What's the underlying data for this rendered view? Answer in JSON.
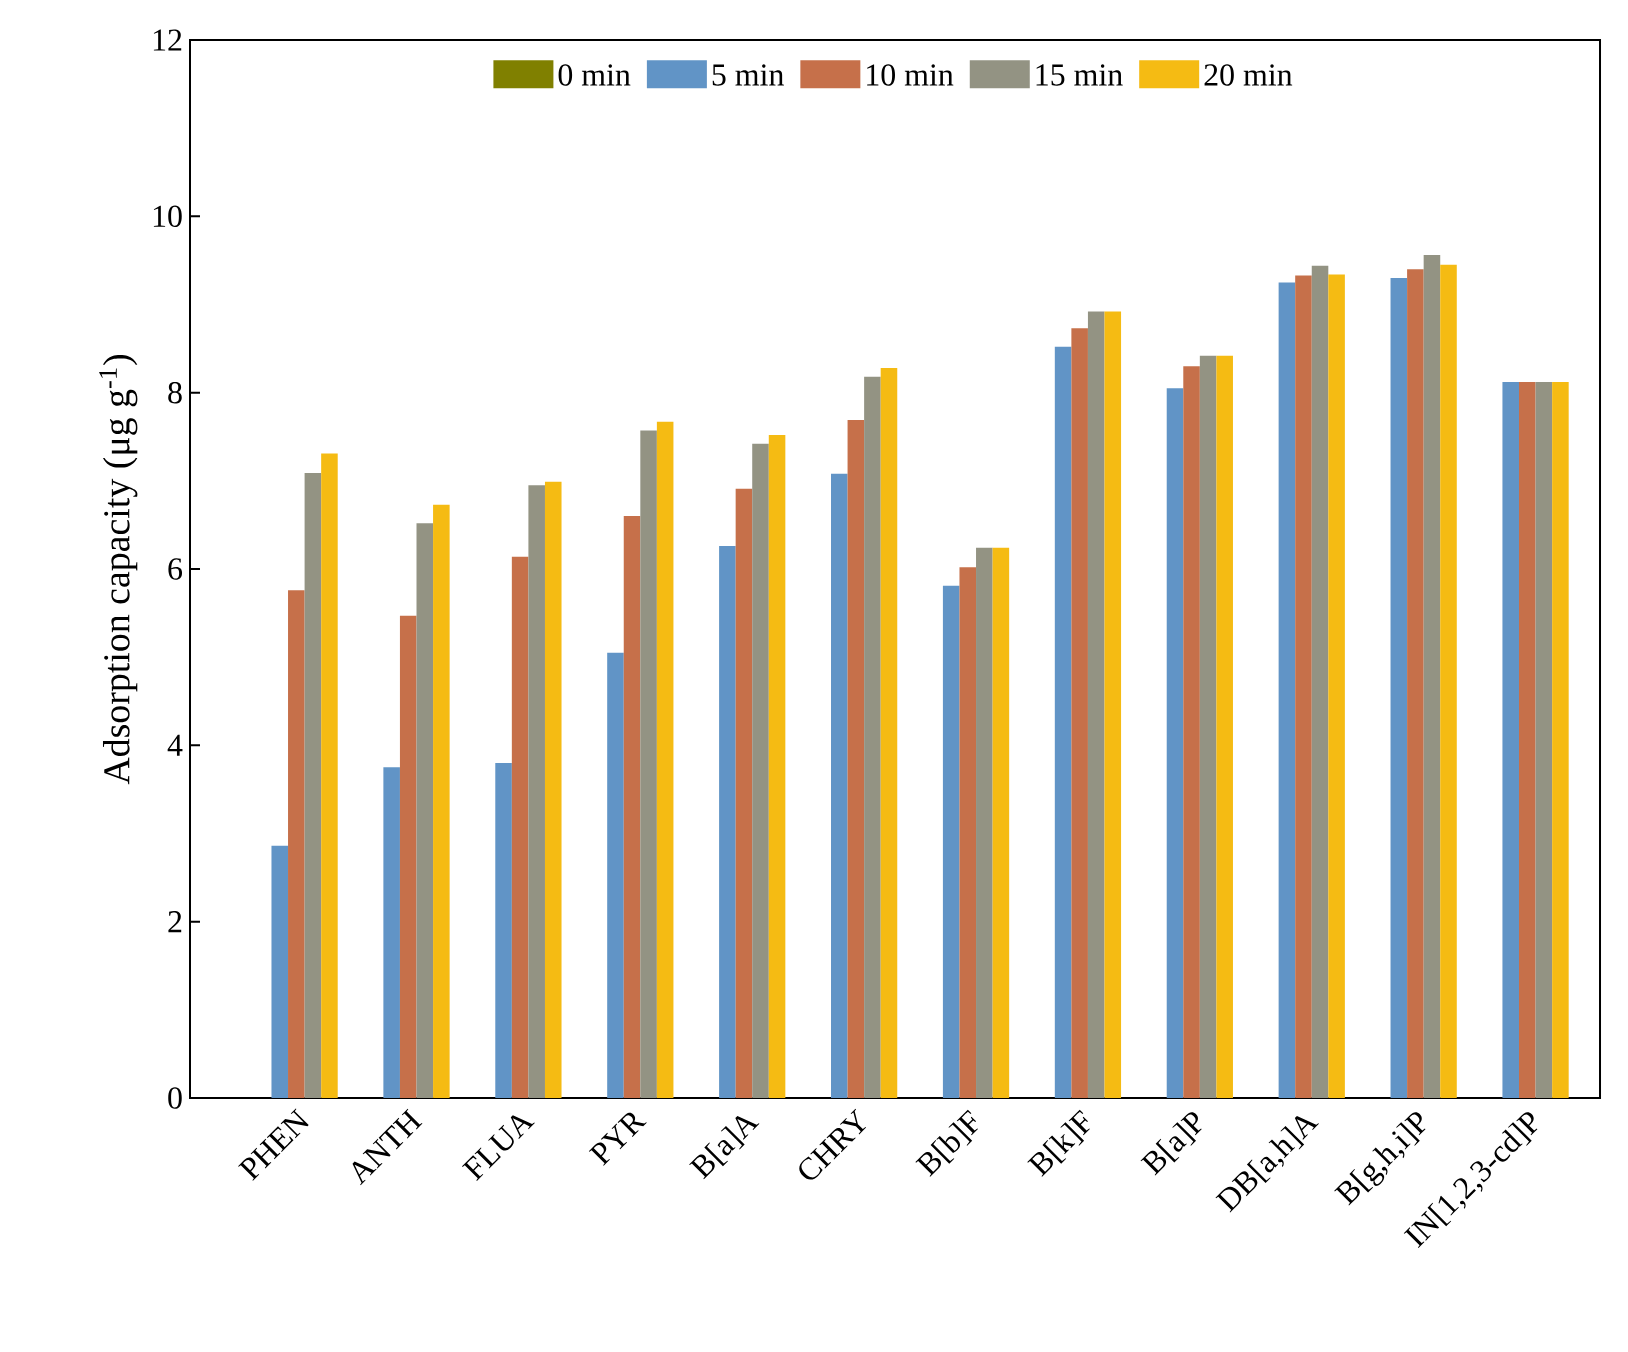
{
  "chart_data": {
    "type": "bar",
    "ylabel": "Adsorption capacity (μg g$^{-1}$)",
    "categories": [
      "PHEN",
      "ANTH",
      "FLUA",
      "PYR",
      "B[a]A",
      "CHRY",
      "B[b]F",
      "B[k]F",
      "B[a]P",
      "DB[a,h]A",
      "B[g,h,i]P",
      "IN[1,2,3-cd]P"
    ],
    "series": [
      {
        "name": "0 min",
        "color": "#808000",
        "values": [
          0,
          0,
          0,
          0,
          0,
          0,
          0,
          0,
          0,
          0,
          0,
          0
        ]
      },
      {
        "name": "5 min",
        "color": "#6194c6",
        "values": [
          2.86,
          3.75,
          3.8,
          5.05,
          6.26,
          7.08,
          5.81,
          8.52,
          8.05,
          9.25,
          9.3,
          8.12
        ]
      },
      {
        "name": "10 min",
        "color": "#c6704a",
        "values": [
          5.76,
          5.47,
          6.14,
          6.6,
          6.91,
          7.69,
          6.02,
          8.73,
          8.3,
          9.33,
          9.4,
          8.12
        ]
      },
      {
        "name": "15 min",
        "color": "#939383",
        "values": [
          7.09,
          6.52,
          6.95,
          7.57,
          7.42,
          8.18,
          6.24,
          8.92,
          8.42,
          9.44,
          9.56,
          8.12
        ]
      },
      {
        "name": "20 min",
        "color": "#f5bb13",
        "values": [
          7.31,
          6.73,
          6.99,
          7.67,
          7.52,
          8.28,
          6.24,
          8.92,
          8.42,
          9.34,
          9.45,
          8.12
        ]
      }
    ],
    "ylim": [
      0,
      12
    ],
    "yticks": [
      0,
      2,
      4,
      6,
      8,
      10,
      12
    ],
    "grid": false,
    "legend": "top"
  }
}
